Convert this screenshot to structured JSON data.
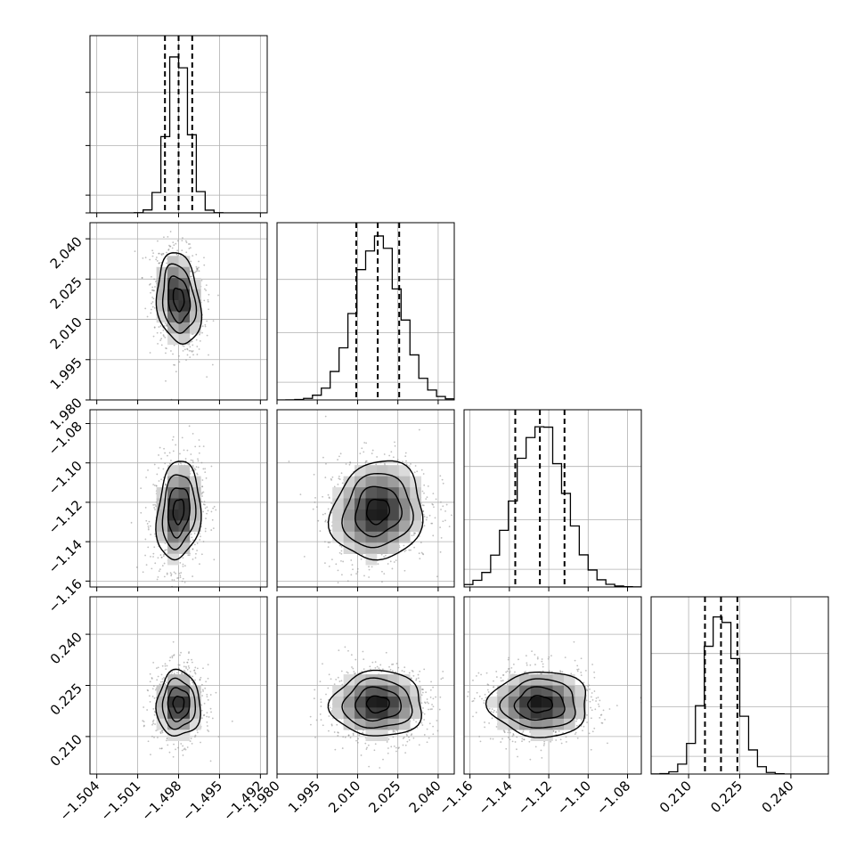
{
  "chart_data": {
    "type": "corner",
    "dimensions": 4,
    "panel_ranges": [
      [
        -1.5045,
        -1.4915
      ],
      [
        1.98,
        2.046
      ],
      [
        -1.163,
        -1.073
      ],
      [
        0.199,
        0.251
      ]
    ],
    "tick_labels": [
      {
        "values": [
          -1.504,
          -1.501,
          -1.498,
          -1.495,
          -1.492
        ],
        "labels": [
          "−1.504",
          "−1.501",
          "−1.498",
          "−1.495",
          "−1.492"
        ]
      },
      {
        "values": [
          1.98,
          1.995,
          2.01,
          2.025,
          2.04
        ],
        "labels": [
          "1.980",
          "1.995",
          "2.010",
          "2.025",
          "2.040"
        ]
      },
      {
        "values": [
          -1.16,
          -1.14,
          -1.12,
          -1.1,
          -1.08
        ],
        "labels": [
          "−1.16",
          "−1.14",
          "−1.12",
          "−1.10",
          "−1.08"
        ]
      },
      {
        "values": [
          0.21,
          0.225,
          0.24
        ],
        "labels": [
          "0.210",
          "0.225",
          "0.240"
        ]
      }
    ],
    "histograms": [
      {
        "mean": -1.498,
        "sd": 0.0008,
        "quantiles": [
          -1.499,
          -1.498,
          -1.497
        ],
        "peak": 1.0
      },
      {
        "mean": 2.0175,
        "sd": 0.0085,
        "quantiles": [
          2.0095,
          2.0175,
          2.0255
        ],
        "peak": 1.0
      },
      {
        "mean": -1.1245,
        "sd": 0.0125,
        "quantiles": [
          -1.137,
          -1.1245,
          -1.112
        ],
        "peak": 1.0
      },
      {
        "mean": 0.2195,
        "sd": 0.0048,
        "quantiles": [
          0.2148,
          0.2195,
          0.2243
        ],
        "peak": 1.0
      }
    ],
    "correlations": [
      [
        1.0,
        -0.2,
        0.15,
        0.0
      ],
      [
        -0.2,
        1.0,
        0.1,
        0.0
      ],
      [
        0.15,
        0.1,
        1.0,
        0.0
      ],
      [
        0.0,
        0.0,
        0.0,
        1.0
      ]
    ],
    "contour_levels_sigma": [
      0.5,
      1.0,
      1.5,
      2.0
    ],
    "line_color": "#000000",
    "density_color": "#000000",
    "grid": true
  }
}
